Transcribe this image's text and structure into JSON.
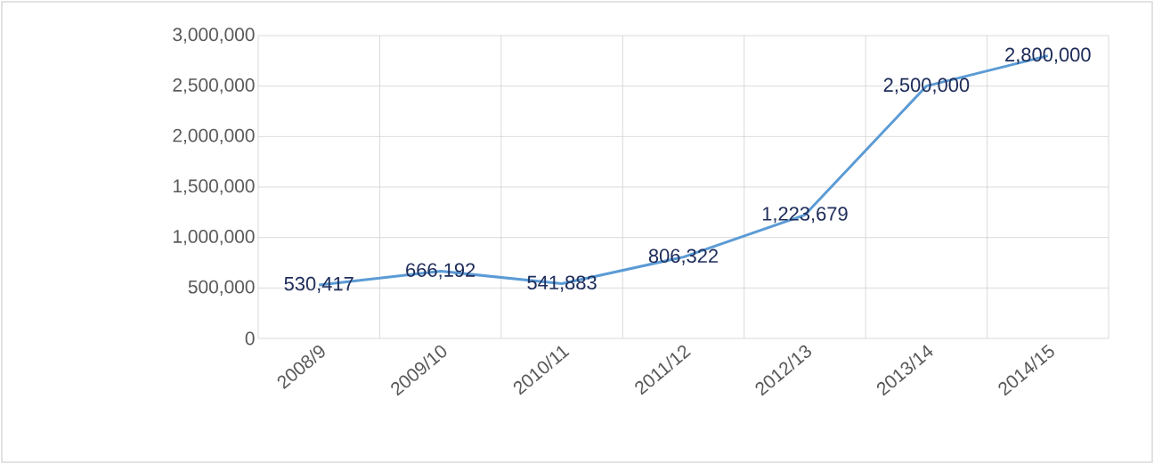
{
  "chart_data": {
    "type": "line",
    "categories": [
      "2008/9",
      "2009/10",
      "2010/11",
      "2011/12",
      "2012/13",
      "2013/14",
      "2014/15"
    ],
    "series": [
      {
        "color": "#5b9bd5",
        "values": [
          530417,
          666192,
          541883,
          806322,
          1223679,
          2500000,
          2800000
        ],
        "value_labels": [
          "530,417",
          "666,192",
          "541,883",
          "806,322",
          "1,223,679",
          "2,500,000",
          "2,800,000"
        ]
      }
    ],
    "ylim": [
      0,
      3000000
    ],
    "yticks": [
      {
        "value": 0,
        "label": "0"
      },
      {
        "value": 500000,
        "label": "500,000"
      },
      {
        "value": 1000000,
        "label": "1,000,000"
      },
      {
        "value": 1500000,
        "label": "1,500,000"
      },
      {
        "value": 2000000,
        "label": "2,000,000"
      },
      {
        "value": 2500000,
        "label": "2,500,000"
      },
      {
        "value": 3000000,
        "label": "3,000,000"
      }
    ],
    "grid": true,
    "marker": "none",
    "line_style": "solid"
  }
}
